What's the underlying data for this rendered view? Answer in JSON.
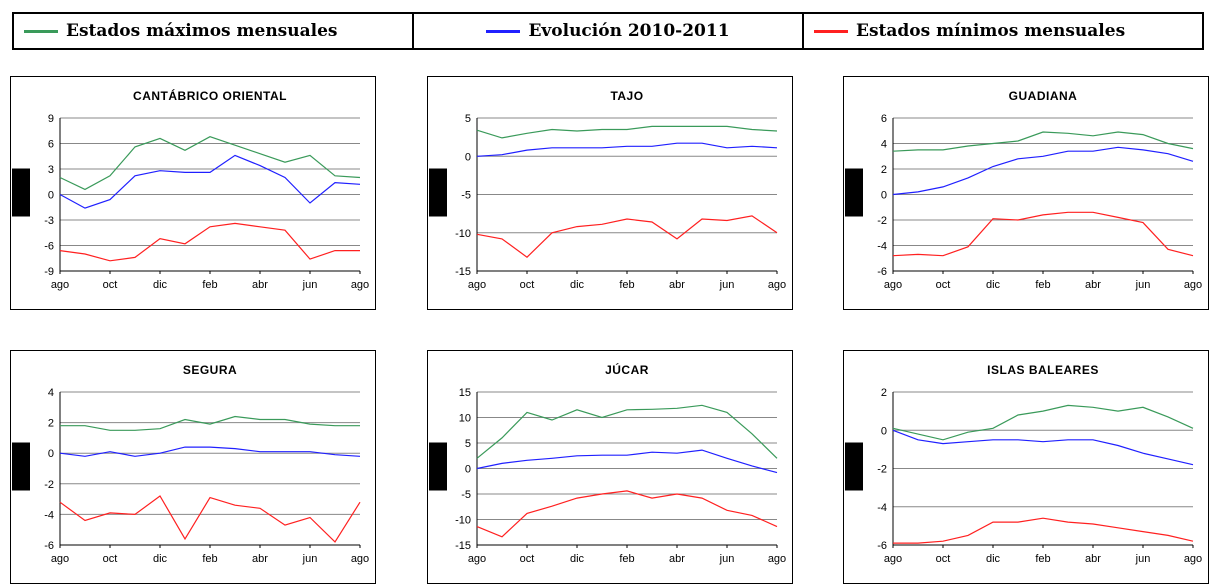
{
  "legend": {
    "items": [
      {
        "label": "Estados máximos mensuales",
        "color": "#3a9a5a"
      },
      {
        "label": "Evolución 2010-2011",
        "color": "#2020ff"
      },
      {
        "label": "Estados mínimos mensuales",
        "color": "#ff2020"
      }
    ]
  },
  "chart_data": [
    {
      "type": "line",
      "title": "CANTÁBRICO ORIENTAL",
      "ylim": [
        -9,
        9
      ],
      "yticks": [
        9,
        6,
        3,
        0,
        -3,
        -6,
        -9
      ],
      "xtick_labels": [
        "ago",
        "oct",
        "dic",
        "feb",
        "abr",
        "jun",
        "ago"
      ],
      "series": [
        {
          "color": "#3a9a5a",
          "values": [
            2.0,
            0.6,
            2.2,
            5.6,
            6.6,
            5.2,
            6.8,
            5.8,
            4.8,
            3.8,
            4.6,
            2.2,
            2.0
          ]
        },
        {
          "color": "#2020ff",
          "values": [
            0.0,
            -1.6,
            -0.6,
            2.2,
            2.8,
            2.6,
            2.6,
            4.6,
            3.4,
            2.0,
            -1.0,
            1.4,
            1.2
          ]
        },
        {
          "color": "#ff2020",
          "values": [
            -6.6,
            -7.0,
            -7.8,
            -7.4,
            -5.2,
            -5.8,
            -3.8,
            -3.4,
            -3.8,
            -4.2,
            -7.6,
            -6.6,
            -6.6
          ]
        }
      ]
    },
    {
      "type": "line",
      "title": "TAJO",
      "ylim": [
        -15,
        5
      ],
      "yticks": [
        5,
        0,
        -5,
        -10,
        -15
      ],
      "xtick_labels": [
        "ago",
        "oct",
        "dic",
        "feb",
        "abr",
        "jun",
        "ago"
      ],
      "series": [
        {
          "color": "#3a9a5a",
          "values": [
            3.4,
            2.4,
            3.0,
            3.5,
            3.3,
            3.5,
            3.5,
            3.9,
            3.9,
            3.9,
            3.9,
            3.5,
            3.3
          ]
        },
        {
          "color": "#2020ff",
          "values": [
            0.0,
            0.2,
            0.8,
            1.1,
            1.1,
            1.1,
            1.3,
            1.3,
            1.7,
            1.7,
            1.1,
            1.3,
            1.1
          ]
        },
        {
          "color": "#ff2020",
          "values": [
            -10.2,
            -10.8,
            -13.2,
            -10.0,
            -9.2,
            -8.9,
            -8.2,
            -8.6,
            -10.8,
            -8.2,
            -8.4,
            -7.8,
            -10.0
          ]
        }
      ]
    },
    {
      "type": "line",
      "title": "GUADIANA",
      "ylim": [
        -6,
        6
      ],
      "yticks": [
        6,
        4,
        2,
        0,
        -2,
        -4,
        -6
      ],
      "xtick_labels": [
        "ago",
        "oct",
        "dic",
        "feb",
        "abr",
        "jun",
        "ago"
      ],
      "series": [
        {
          "color": "#3a9a5a",
          "values": [
            3.4,
            3.5,
            3.5,
            3.8,
            4.0,
            4.2,
            4.9,
            4.8,
            4.6,
            4.9,
            4.7,
            4.0,
            3.6
          ]
        },
        {
          "color": "#2020ff",
          "values": [
            0.0,
            0.2,
            0.6,
            1.3,
            2.2,
            2.8,
            3.0,
            3.4,
            3.4,
            3.7,
            3.5,
            3.2,
            2.6
          ]
        },
        {
          "color": "#ff2020",
          "values": [
            -4.8,
            -4.7,
            -4.8,
            -4.1,
            -1.9,
            -2.0,
            -1.6,
            -1.4,
            -1.4,
            -1.8,
            -2.2,
            -4.3,
            -4.8
          ]
        }
      ]
    },
    {
      "type": "line",
      "title": "SEGURA",
      "ylim": [
        -6,
        4
      ],
      "yticks": [
        4,
        2,
        0,
        -2,
        -4,
        -6
      ],
      "xtick_labels": [
        "ago",
        "oct",
        "dic",
        "feb",
        "abr",
        "jun",
        "ago"
      ],
      "series": [
        {
          "color": "#3a9a5a",
          "values": [
            1.8,
            1.8,
            1.5,
            1.5,
            1.6,
            2.2,
            1.9,
            2.4,
            2.2,
            2.2,
            1.9,
            1.8,
            1.8
          ]
        },
        {
          "color": "#2020ff",
          "values": [
            0.0,
            -0.2,
            0.1,
            -0.2,
            0.0,
            0.4,
            0.4,
            0.3,
            0.1,
            0.1,
            0.1,
            -0.1,
            -0.2
          ]
        },
        {
          "color": "#ff2020",
          "values": [
            -3.2,
            -4.4,
            -3.9,
            -4.0,
            -2.8,
            -5.6,
            -2.9,
            -3.4,
            -3.6,
            -4.7,
            -4.2,
            -5.8,
            -3.2
          ]
        }
      ]
    },
    {
      "type": "line",
      "title": "JÚCAR",
      "ylim": [
        -15,
        15
      ],
      "yticks": [
        15,
        10,
        5,
        0,
        -5,
        -10,
        -15
      ],
      "xtick_labels": [
        "ago",
        "oct",
        "dic",
        "feb",
        "abr",
        "jun",
        "ago"
      ],
      "series": [
        {
          "color": "#3a9a5a",
          "values": [
            2.0,
            6.0,
            11.0,
            9.5,
            11.5,
            10.0,
            11.5,
            11.6,
            11.8,
            12.4,
            11.0,
            6.8,
            2.0
          ]
        },
        {
          "color": "#2020ff",
          "values": [
            0.0,
            1.0,
            1.6,
            2.0,
            2.5,
            2.6,
            2.6,
            3.2,
            3.0,
            3.6,
            2.0,
            0.5,
            -0.8
          ]
        },
        {
          "color": "#ff2020",
          "values": [
            -11.4,
            -13.4,
            -8.8,
            -7.4,
            -5.8,
            -5.0,
            -4.4,
            -5.8,
            -5.0,
            -5.8,
            -8.2,
            -9.2,
            -11.4
          ]
        }
      ]
    },
    {
      "type": "line",
      "title": "ISLAS BALEARES",
      "ylim": [
        -6,
        2
      ],
      "yticks": [
        2,
        0,
        -2,
        -4,
        -6
      ],
      "xtick_labels": [
        "ago",
        "oct",
        "dic",
        "feb",
        "abr",
        "jun",
        "ago"
      ],
      "series": [
        {
          "color": "#3a9a5a",
          "values": [
            0.1,
            -0.2,
            -0.5,
            -0.1,
            0.1,
            0.8,
            1.0,
            1.3,
            1.2,
            1.0,
            1.2,
            0.7,
            0.1
          ]
        },
        {
          "color": "#2020ff",
          "values": [
            0.0,
            -0.5,
            -0.7,
            -0.6,
            -0.5,
            -0.5,
            -0.6,
            -0.5,
            -0.5,
            -0.8,
            -1.2,
            -1.5,
            -1.8
          ]
        },
        {
          "color": "#ff2020",
          "values": [
            -5.9,
            -5.9,
            -5.8,
            -5.5,
            -4.8,
            -4.8,
            -4.6,
            -4.8,
            -4.9,
            -5.1,
            -5.3,
            -5.5,
            -5.8
          ]
        }
      ]
    }
  ]
}
